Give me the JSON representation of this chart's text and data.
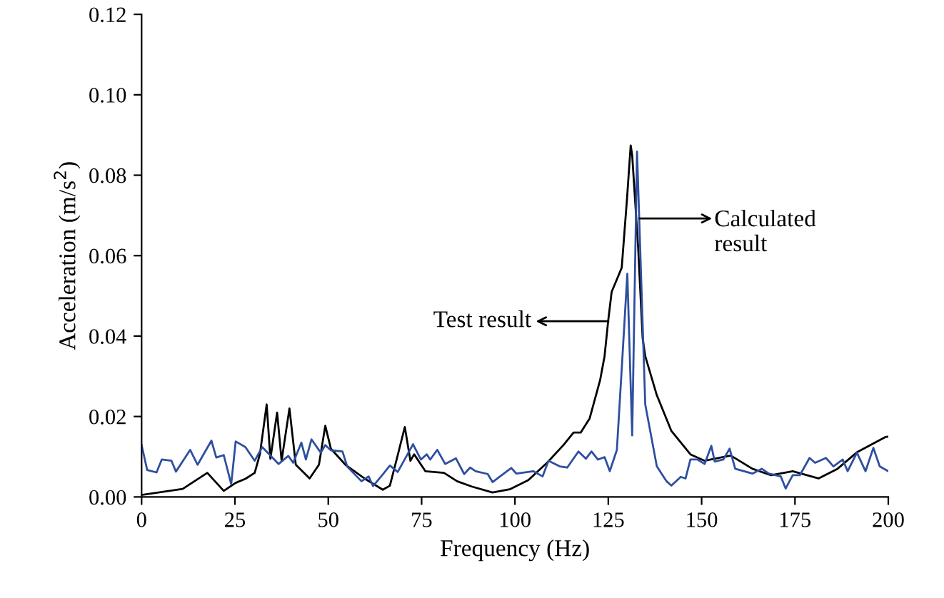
{
  "chart_data": {
    "type": "line",
    "xlabel": "Frequency (Hz)",
    "ylabel": "Acceleration (m/s$^{2}$)",
    "xlim": [
      0,
      200
    ],
    "xticks": [
      0,
      25,
      50,
      75,
      100,
      125,
      150,
      175,
      200
    ],
    "ylim": [
      0,
      0.12
    ],
    "yticks": [
      {
        "value": 0,
        "label": "0.00"
      },
      0.02,
      0.04,
      0.06,
      0.08,
      {
        "value": 0.1,
        "label": "0.10"
      },
      0.12
    ],
    "grid": false,
    "legend": false,
    "marker": "none",
    "line_style": "solid",
    "annotations": [
      "Test result",
      "Calculated\nresult"
    ],
    "series": [
      {
        "color": "#000000",
        "x": [
          0,
          11,
          17.6,
          22,
          25.2,
          27.8,
          30.3,
          31.7,
          33.5,
          34.5,
          36.3,
          37.5,
          39.6,
          41.3,
          45,
          47.5,
          49.2,
          50.7,
          54.6,
          59.7,
          64.6,
          66.5,
          68.5,
          70.5,
          72,
          73,
          76,
          81,
          84.5,
          88.4,
          94,
          98.6,
          103.6,
          108.6,
          113,
          115.7,
          117.6,
          120,
          122.8,
          124,
          125,
          125.9,
          127.7,
          128.6,
          130,
          131,
          131.4,
          133,
          134.2,
          134.9,
          138,
          141.9,
          147,
          150.8,
          157.8,
          163.6,
          168.6,
          174.4,
          181.3,
          186.4,
          191.6,
          199.2,
          200
        ],
        "values": [
          0.0005,
          0.002,
          0.006,
          0.0015,
          0.0035,
          0.0045,
          0.006,
          0.0107,
          0.023,
          0.0095,
          0.021,
          0.009,
          0.022,
          0.008,
          0.0046,
          0.008,
          0.0177,
          0.012,
          0.008,
          0.0046,
          0.0018,
          0.0028,
          0.01,
          0.0174,
          0.009,
          0.0106,
          0.0064,
          0.006,
          0.0039,
          0.0026,
          0.0011,
          0.0019,
          0.0042,
          0.0085,
          0.0129,
          0.016,
          0.016,
          0.0195,
          0.029,
          0.035,
          0.044,
          0.051,
          0.055,
          0.057,
          0.074,
          0.0874,
          0.085,
          0.062,
          0.0395,
          0.035,
          0.0253,
          0.0164,
          0.0106,
          0.009,
          0.0103,
          0.007,
          0.0054,
          0.0064,
          0.0046,
          0.007,
          0.0111,
          0.0149,
          0.015
        ]
      },
      {
        "color": "#2e4fa0",
        "x": [
          0,
          1.5,
          4,
          5.4,
          8,
          9.2,
          13,
          15,
          18.7,
          20,
          22,
          24,
          25.2,
          27.8,
          30.3,
          32.3,
          36.7,
          39.3,
          40.6,
          42.8,
          44,
          45.5,
          48,
          49.2,
          50.7,
          53.8,
          55.1,
          58.9,
          60.8,
          62,
          64.6,
          66.5,
          68.6,
          72.7,
          74.8,
          76.4,
          77.3,
          79.2,
          81.3,
          84.2,
          86.4,
          88,
          89.5,
          92.7,
          94,
          96,
          99,
          100.4,
          104.9,
          107.4,
          109,
          112,
          114,
          117,
          119,
          120.5,
          122.2,
          124,
          125.4,
          127.3,
          128.8,
          130.1,
          131.4,
          132.7,
          134.9,
          138,
          140.6,
          141.9,
          144.4,
          145.7,
          147,
          148.9,
          150.8,
          152.6,
          153.5,
          155.8,
          157.5,
          159,
          163.6,
          166.1,
          168,
          171.2,
          172.5,
          174.4,
          176.3,
          178.9,
          180.4,
          183.3,
          185.3,
          187.8,
          189.1,
          191.6,
          193.9,
          196,
          197.7,
          200
        ],
        "values": [
          0.0129,
          0.0067,
          0.0061,
          0.0093,
          0.009,
          0.0063,
          0.0117,
          0.008,
          0.014,
          0.0098,
          0.0104,
          0.0032,
          0.0138,
          0.0124,
          0.009,
          0.0124,
          0.0082,
          0.0102,
          0.0085,
          0.0135,
          0.0093,
          0.0143,
          0.011,
          0.0129,
          0.0116,
          0.0113,
          0.0075,
          0.0039,
          0.0051,
          0.0027,
          0.0056,
          0.0078,
          0.0062,
          0.0131,
          0.0093,
          0.0106,
          0.0093,
          0.0117,
          0.0082,
          0.0096,
          0.0057,
          0.0073,
          0.0064,
          0.0057,
          0.0037,
          0.0051,
          0.0072,
          0.0058,
          0.0064,
          0.0051,
          0.009,
          0.0076,
          0.0073,
          0.0113,
          0.0095,
          0.0113,
          0.0093,
          0.0099,
          0.0064,
          0.0117,
          0.035,
          0.0555,
          0.0153,
          0.0859,
          0.023,
          0.0076,
          0.0039,
          0.0028,
          0.005,
          0.0046,
          0.0093,
          0.0093,
          0.0082,
          0.0127,
          0.0088,
          0.0093,
          0.012,
          0.007,
          0.0058,
          0.007,
          0.0058,
          0.0051,
          0.0021,
          0.0054,
          0.0054,
          0.0097,
          0.0085,
          0.0097,
          0.0076,
          0.0093,
          0.0064,
          0.011,
          0.0064,
          0.0122,
          0.0076,
          0.0064
        ]
      }
    ]
  }
}
